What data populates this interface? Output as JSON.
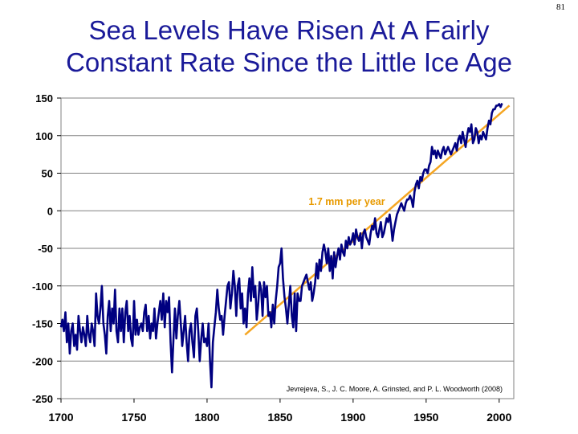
{
  "page": {
    "number": "81",
    "title_line1": "Sea Levels Have Risen At A Fairly",
    "title_line2": "Constant Rate Since the Little Ice Age"
  },
  "chart_data": {
    "type": "line",
    "title": "",
    "xlabel": "",
    "ylabel": "",
    "xlim": [
      1700,
      2010
    ],
    "ylim": [
      -250,
      150
    ],
    "x_ticks": [
      1700,
      1750,
      1800,
      1850,
      1900,
      1950,
      2000
    ],
    "y_ticks": [
      150,
      100,
      50,
      0,
      -50,
      -100,
      -150,
      -200,
      -250
    ],
    "grid": "horizontal",
    "series": [
      {
        "color": "#000080",
        "points": [
          [
            1700,
            -155
          ],
          [
            1701,
            -145
          ],
          [
            1702,
            -160
          ],
          [
            1703,
            -135
          ],
          [
            1704,
            -175
          ],
          [
            1705,
            -150
          ],
          [
            1706,
            -190
          ],
          [
            1707,
            -160
          ],
          [
            1708,
            -150
          ],
          [
            1709,
            -180
          ],
          [
            1710,
            -165
          ],
          [
            1711,
            -185
          ],
          [
            1712,
            -140
          ],
          [
            1713,
            -160
          ],
          [
            1714,
            -175
          ],
          [
            1715,
            -155
          ],
          [
            1716,
            -165
          ],
          [
            1717,
            -180
          ],
          [
            1718,
            -140
          ],
          [
            1719,
            -165
          ],
          [
            1720,
            -175
          ],
          [
            1721,
            -150
          ],
          [
            1722,
            -160
          ],
          [
            1723,
            -180
          ],
          [
            1724,
            -110
          ],
          [
            1725,
            -140
          ],
          [
            1726,
            -150
          ],
          [
            1727,
            -130
          ],
          [
            1728,
            -100
          ],
          [
            1729,
            -150
          ],
          [
            1730,
            -165
          ],
          [
            1731,
            -190
          ],
          [
            1732,
            -140
          ],
          [
            1733,
            -120
          ],
          [
            1734,
            -160
          ],
          [
            1735,
            -130
          ],
          [
            1736,
            -150
          ],
          [
            1737,
            -105
          ],
          [
            1738,
            -160
          ],
          [
            1739,
            -175
          ],
          [
            1740,
            -130
          ],
          [
            1741,
            -160
          ],
          [
            1742,
            -130
          ],
          [
            1743,
            -175
          ],
          [
            1744,
            -135
          ],
          [
            1745,
            -120
          ],
          [
            1746,
            -160
          ],
          [
            1747,
            -140
          ],
          [
            1748,
            -170
          ],
          [
            1749,
            -180
          ],
          [
            1750,
            -120
          ],
          [
            1751,
            -165
          ],
          [
            1752,
            -145
          ],
          [
            1753,
            -165
          ],
          [
            1754,
            -155
          ],
          [
            1755,
            -150
          ],
          [
            1756,
            -160
          ],
          [
            1757,
            -135
          ],
          [
            1758,
            -125
          ],
          [
            1759,
            -160
          ],
          [
            1760,
            -140
          ],
          [
            1761,
            -170
          ],
          [
            1762,
            -150
          ],
          [
            1763,
            -160
          ],
          [
            1764,
            -130
          ],
          [
            1765,
            -170
          ],
          [
            1766,
            -150
          ],
          [
            1767,
            -135
          ],
          [
            1768,
            -120
          ],
          [
            1769,
            -145
          ],
          [
            1770,
            -110
          ],
          [
            1771,
            -155
          ],
          [
            1772,
            -120
          ],
          [
            1773,
            -135
          ],
          [
            1774,
            -115
          ],
          [
            1775,
            -175
          ],
          [
            1776,
            -215
          ],
          [
            1777,
            -170
          ],
          [
            1778,
            -130
          ],
          [
            1779,
            -170
          ],
          [
            1780,
            -140
          ],
          [
            1781,
            -120
          ],
          [
            1782,
            -150
          ],
          [
            1783,
            -180
          ],
          [
            1784,
            -160
          ],
          [
            1785,
            -140
          ],
          [
            1786,
            -175
          ],
          [
            1787,
            -200
          ],
          [
            1788,
            -160
          ],
          [
            1789,
            -150
          ],
          [
            1790,
            -175
          ],
          [
            1791,
            -195
          ],
          [
            1792,
            -140
          ],
          [
            1793,
            -130
          ],
          [
            1794,
            -160
          ],
          [
            1795,
            -200
          ],
          [
            1796,
            -170
          ],
          [
            1797,
            -150
          ],
          [
            1798,
            -175
          ],
          [
            1799,
            -170
          ],
          [
            1800,
            -180
          ],
          [
            1801,
            -150
          ],
          [
            1802,
            -200
          ],
          [
            1803,
            -235
          ],
          [
            1804,
            -175
          ],
          [
            1805,
            -155
          ],
          [
            1806,
            -135
          ],
          [
            1807,
            -105
          ],
          [
            1808,
            -130
          ],
          [
            1809,
            -145
          ],
          [
            1810,
            -140
          ],
          [
            1811,
            -165
          ],
          [
            1812,
            -140
          ],
          [
            1813,
            -120
          ],
          [
            1814,
            -100
          ],
          [
            1815,
            -95
          ],
          [
            1816,
            -130
          ],
          [
            1817,
            -110
          ],
          [
            1818,
            -80
          ],
          [
            1819,
            -100
          ],
          [
            1820,
            -140
          ],
          [
            1821,
            -100
          ],
          [
            1822,
            -90
          ],
          [
            1823,
            -130
          ],
          [
            1824,
            -110
          ],
          [
            1825,
            -150
          ],
          [
            1826,
            -130
          ],
          [
            1827,
            -155
          ],
          [
            1828,
            -110
          ],
          [
            1829,
            -90
          ],
          [
            1830,
            -120
          ],
          [
            1831,
            -75
          ],
          [
            1832,
            -115
          ],
          [
            1833,
            -100
          ],
          [
            1834,
            -145
          ],
          [
            1835,
            -125
          ],
          [
            1836,
            -95
          ],
          [
            1837,
            -105
          ],
          [
            1838,
            -140
          ],
          [
            1839,
            -95
          ],
          [
            1840,
            -115
          ],
          [
            1841,
            -100
          ],
          [
            1842,
            -140
          ],
          [
            1843,
            -135
          ],
          [
            1844,
            -155
          ],
          [
            1845,
            -125
          ],
          [
            1846,
            -150
          ],
          [
            1847,
            -120
          ],
          [
            1848,
            -100
          ],
          [
            1849,
            -75
          ],
          [
            1850,
            -70
          ],
          [
            1851,
            -50
          ],
          [
            1852,
            -90
          ],
          [
            1853,
            -115
          ],
          [
            1854,
            -130
          ],
          [
            1855,
            -150
          ],
          [
            1856,
            -125
          ],
          [
            1857,
            -100
          ],
          [
            1858,
            -140
          ],
          [
            1859,
            -155
          ],
          [
            1860,
            -110
          ],
          [
            1861,
            -160
          ],
          [
            1862,
            -110
          ],
          [
            1863,
            -120
          ],
          [
            1864,
            -120
          ],
          [
            1865,
            -100
          ],
          [
            1866,
            -95
          ],
          [
            1867,
            -90
          ],
          [
            1868,
            -85
          ],
          [
            1869,
            -95
          ],
          [
            1870,
            -105
          ],
          [
            1871,
            -95
          ],
          [
            1872,
            -120
          ],
          [
            1873,
            -110
          ],
          [
            1874,
            -95
          ],
          [
            1875,
            -70
          ],
          [
            1876,
            -90
          ],
          [
            1877,
            -65
          ],
          [
            1878,
            -80
          ],
          [
            1879,
            -55
          ],
          [
            1880,
            -45
          ],
          [
            1881,
            -55
          ],
          [
            1882,
            -70
          ],
          [
            1883,
            -50
          ],
          [
            1884,
            -80
          ],
          [
            1885,
            -60
          ],
          [
            1886,
            -90
          ],
          [
            1887,
            -55
          ],
          [
            1888,
            -75
          ],
          [
            1889,
            -60
          ],
          [
            1890,
            -50
          ],
          [
            1891,
            -65
          ],
          [
            1892,
            -45
          ],
          [
            1893,
            -55
          ],
          [
            1894,
            -60
          ],
          [
            1895,
            -40
          ],
          [
            1896,
            -50
          ],
          [
            1897,
            -35
          ],
          [
            1898,
            -45
          ],
          [
            1899,
            -40
          ],
          [
            1900,
            -30
          ],
          [
            1901,
            -45
          ],
          [
            1902,
            -25
          ],
          [
            1903,
            -35
          ],
          [
            1904,
            -40
          ],
          [
            1905,
            -30
          ],
          [
            1906,
            -50
          ],
          [
            1907,
            -30
          ],
          [
            1908,
            -25
          ],
          [
            1909,
            -35
          ],
          [
            1910,
            -40
          ],
          [
            1911,
            -45
          ],
          [
            1912,
            -30
          ],
          [
            1913,
            -20
          ],
          [
            1914,
            -25
          ],
          [
            1915,
            -10
          ],
          [
            1916,
            -30
          ],
          [
            1917,
            -35
          ],
          [
            1918,
            -25
          ],
          [
            1919,
            -15
          ],
          [
            1920,
            -35
          ],
          [
            1921,
            -30
          ],
          [
            1922,
            -20
          ],
          [
            1923,
            -10
          ],
          [
            1924,
            -15
          ],
          [
            1925,
            -5
          ],
          [
            1926,
            -20
          ],
          [
            1927,
            -40
          ],
          [
            1928,
            -25
          ],
          [
            1929,
            -15
          ],
          [
            1930,
            -5
          ],
          [
            1931,
            0
          ],
          [
            1932,
            5
          ],
          [
            1933,
            10
          ],
          [
            1934,
            5
          ],
          [
            1935,
            0
          ],
          [
            1936,
            10
          ],
          [
            1937,
            15
          ],
          [
            1938,
            15
          ],
          [
            1939,
            20
          ],
          [
            1940,
            15
          ],
          [
            1941,
            5
          ],
          [
            1942,
            25
          ],
          [
            1943,
            35
          ],
          [
            1944,
            40
          ],
          [
            1945,
            30
          ],
          [
            1946,
            45
          ],
          [
            1947,
            40
          ],
          [
            1948,
            50
          ],
          [
            1949,
            55
          ],
          [
            1950,
            55
          ],
          [
            1951,
            50
          ],
          [
            1952,
            60
          ],
          [
            1953,
            65
          ],
          [
            1954,
            85
          ],
          [
            1955,
            75
          ],
          [
            1956,
            80
          ],
          [
            1957,
            70
          ],
          [
            1958,
            80
          ],
          [
            1959,
            75
          ],
          [
            1960,
            70
          ],
          [
            1961,
            80
          ],
          [
            1962,
            85
          ],
          [
            1963,
            75
          ],
          [
            1964,
            80
          ],
          [
            1965,
            85
          ],
          [
            1966,
            80
          ],
          [
            1967,
            75
          ],
          [
            1968,
            80
          ],
          [
            1969,
            85
          ],
          [
            1970,
            90
          ],
          [
            1971,
            80
          ],
          [
            1972,
            95
          ],
          [
            1973,
            100
          ],
          [
            1974,
            90
          ],
          [
            1975,
            105
          ],
          [
            1976,
            95
          ],
          [
            1977,
            85
          ],
          [
            1978,
            100
          ],
          [
            1979,
            110
          ],
          [
            1980,
            105
          ],
          [
            1981,
            115
          ],
          [
            1982,
            90
          ],
          [
            1983,
            95
          ],
          [
            1984,
            110
          ],
          [
            1985,
            105
          ],
          [
            1986,
            90
          ],
          [
            1987,
            100
          ],
          [
            1988,
            95
          ],
          [
            1989,
            105
          ],
          [
            1990,
            100
          ],
          [
            1991,
            95
          ],
          [
            1992,
            110
          ],
          [
            1993,
            120
          ],
          [
            1994,
            115
          ],
          [
            1995,
            130
          ],
          [
            1996,
            135
          ],
          [
            1997,
            135
          ],
          [
            1998,
            140
          ],
          [
            1999,
            140
          ],
          [
            2000,
            142
          ],
          [
            2001,
            138
          ],
          [
            2002,
            143
          ]
        ]
      }
    ],
    "trend": {
      "color": "#f5a623",
      "from": [
        1826,
        -165
      ],
      "to": [
        2007,
        140
      ],
      "label": "1.7 mm per year",
      "label_color": "#e89a00"
    },
    "source_note": "Jevrejeva, S., J. C. Moore, A. Grinsted, and P. L. Woodworth (2008)"
  }
}
